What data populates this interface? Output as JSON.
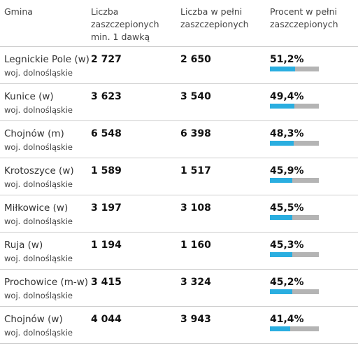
{
  "header": {
    "col1": "Gmina",
    "col2": "Liczba zaszczepionych min. 1 dawką",
    "col3": "Liczba w pełni zaszczepionych",
    "col4": "Procent w pełni zaszczepionych"
  },
  "colors": {
    "bar_fill": "#2aaee0",
    "bar_track": "#b4b4b4",
    "divider": "#cfcfcf"
  },
  "rows": [
    {
      "name": "Legnickie Pole (w)",
      "region": "woj. dolnośląskie",
      "dose1": "2 727",
      "full": "2 650",
      "pct": "51,2%",
      "fraction": 0.512
    },
    {
      "name": "Kunice (w)",
      "region": "woj. dolnośląskie",
      "dose1": "3 623",
      "full": "3 540",
      "pct": "49,4%",
      "fraction": 0.494
    },
    {
      "name": "Chojnów (m)",
      "region": "woj. dolnośląskie",
      "dose1": "6 548",
      "full": "6 398",
      "pct": "48,3%",
      "fraction": 0.483
    },
    {
      "name": "Krotoszyce (w)",
      "region": "woj. dolnośląskie",
      "dose1": "1 589",
      "full": "1 517",
      "pct": "45,9%",
      "fraction": 0.459
    },
    {
      "name": "Miłkowice (w)",
      "region": "woj. dolnośląskie",
      "dose1": "3 197",
      "full": "3 108",
      "pct": "45,5%",
      "fraction": 0.455
    },
    {
      "name": "Ruja (w)",
      "region": "woj. dolnośląskie",
      "dose1": "1 194",
      "full": "1 160",
      "pct": "45,3%",
      "fraction": 0.453
    },
    {
      "name": "Prochowice (m-w)",
      "region": "woj. dolnośląskie",
      "dose1": "3 415",
      "full": "3 324",
      "pct": "45,2%",
      "fraction": 0.452
    },
    {
      "name": "Chojnów (w)",
      "region": "woj. dolnośląskie",
      "dose1": "4 044",
      "full": "3 943",
      "pct": "41,4%",
      "fraction": 0.414
    }
  ]
}
